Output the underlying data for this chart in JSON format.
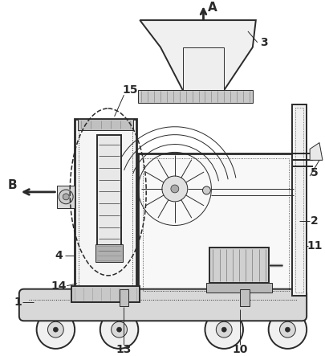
{
  "fig_width": 4.06,
  "fig_height": 4.43,
  "dpi": 100,
  "bg_color": "#ffffff",
  "line_color": "#2a2a2a",
  "lw_main": 1.4,
  "lw_thin": 0.7,
  "lw_thick": 2.0
}
